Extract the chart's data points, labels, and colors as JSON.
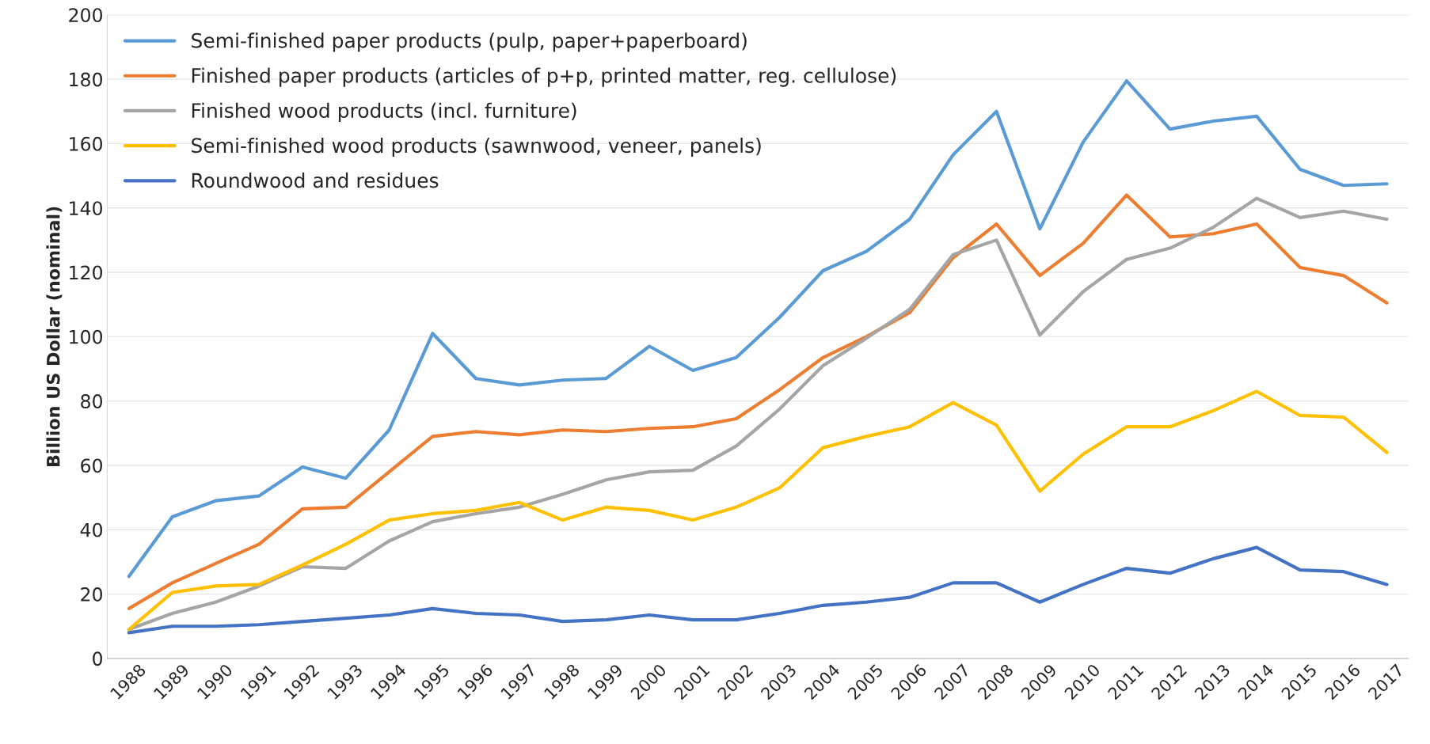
{
  "chart_data": {
    "type": "line",
    "ylabel": "Billion US Dollar (nominal)",
    "categories": [
      "1988",
      "1989",
      "1990",
      "1991",
      "1992",
      "1993",
      "1994",
      "1995",
      "1996",
      "1997",
      "1998",
      "1999",
      "2000",
      "2001",
      "2002",
      "2003",
      "2004",
      "2005",
      "2006",
      "2007",
      "2008",
      "2009",
      "2010",
      "2011",
      "2012",
      "2013",
      "2014",
      "2015",
      "2016",
      "2017"
    ],
    "series": [
      {
        "name": "Semi-finished paper products (pulp, paper+paperboard)",
        "color": "#5b9bd5",
        "values": [
          25.5,
          44,
          49,
          50.5,
          59.5,
          56,
          71,
          101,
          87,
          85,
          86.5,
          87,
          97,
          89.5,
          93.5,
          106,
          120.5,
          126.5,
          136.5,
          156.5,
          170,
          133.5,
          160.5,
          179.5,
          164.5,
          167,
          168.5,
          152,
          147,
          147.5
        ]
      },
      {
        "name": "Finished paper products (articles of p+p, printed matter, reg. cellulose)",
        "color": "#ed7d31",
        "values": [
          15.5,
          23.5,
          29.5,
          35.5,
          46.5,
          47,
          58,
          69,
          70.5,
          69.5,
          71,
          70.5,
          71.5,
          72,
          74.5,
          83.5,
          93.5,
          100,
          107.5,
          124.5,
          135,
          119,
          129,
          144,
          131,
          132,
          135,
          121.5,
          119,
          110.5
        ]
      },
      {
        "name": "Finished wood products (incl. furniture)",
        "color": "#a5a5a5",
        "values": [
          9,
          14,
          17.5,
          22.5,
          28.5,
          28,
          36.5,
          42.5,
          45,
          47,
          51,
          55.5,
          58,
          58.5,
          66,
          77.5,
          91,
          99.5,
          108.5,
          125.5,
          130,
          100.5,
          114,
          124,
          127.5,
          134,
          143,
          137,
          139,
          136.5
        ]
      },
      {
        "name": "Semi-finished wood products (sawnwood, veneer, panels)",
        "color": "#ffc000",
        "values": [
          9,
          20.5,
          22.5,
          23,
          29,
          35.5,
          43,
          45,
          46,
          48.5,
          43,
          47,
          46,
          43,
          47,
          53,
          65.5,
          69,
          72,
          79.5,
          72.5,
          52,
          63.5,
          72,
          72,
          77,
          83,
          75.5,
          75,
          64
        ]
      },
      {
        "name": "Roundwood and residues",
        "color": "#4472c4",
        "values": [
          8,
          10,
          10,
          10.5,
          11.5,
          12.5,
          13.5,
          15.5,
          14,
          13.5,
          11.5,
          12,
          13.5,
          12,
          12,
          14,
          16.5,
          17.5,
          19,
          23.5,
          23.5,
          17.5,
          23,
          28,
          26.5,
          31,
          34.5,
          27.5,
          27,
          23
        ]
      }
    ],
    "ylim": [
      0,
      200
    ],
    "yticks": [
      0,
      20,
      40,
      60,
      80,
      100,
      120,
      140,
      160,
      180,
      200
    ],
    "grid": "y",
    "legend": "top left",
    "marker": "none",
    "line_style": "solid"
  }
}
